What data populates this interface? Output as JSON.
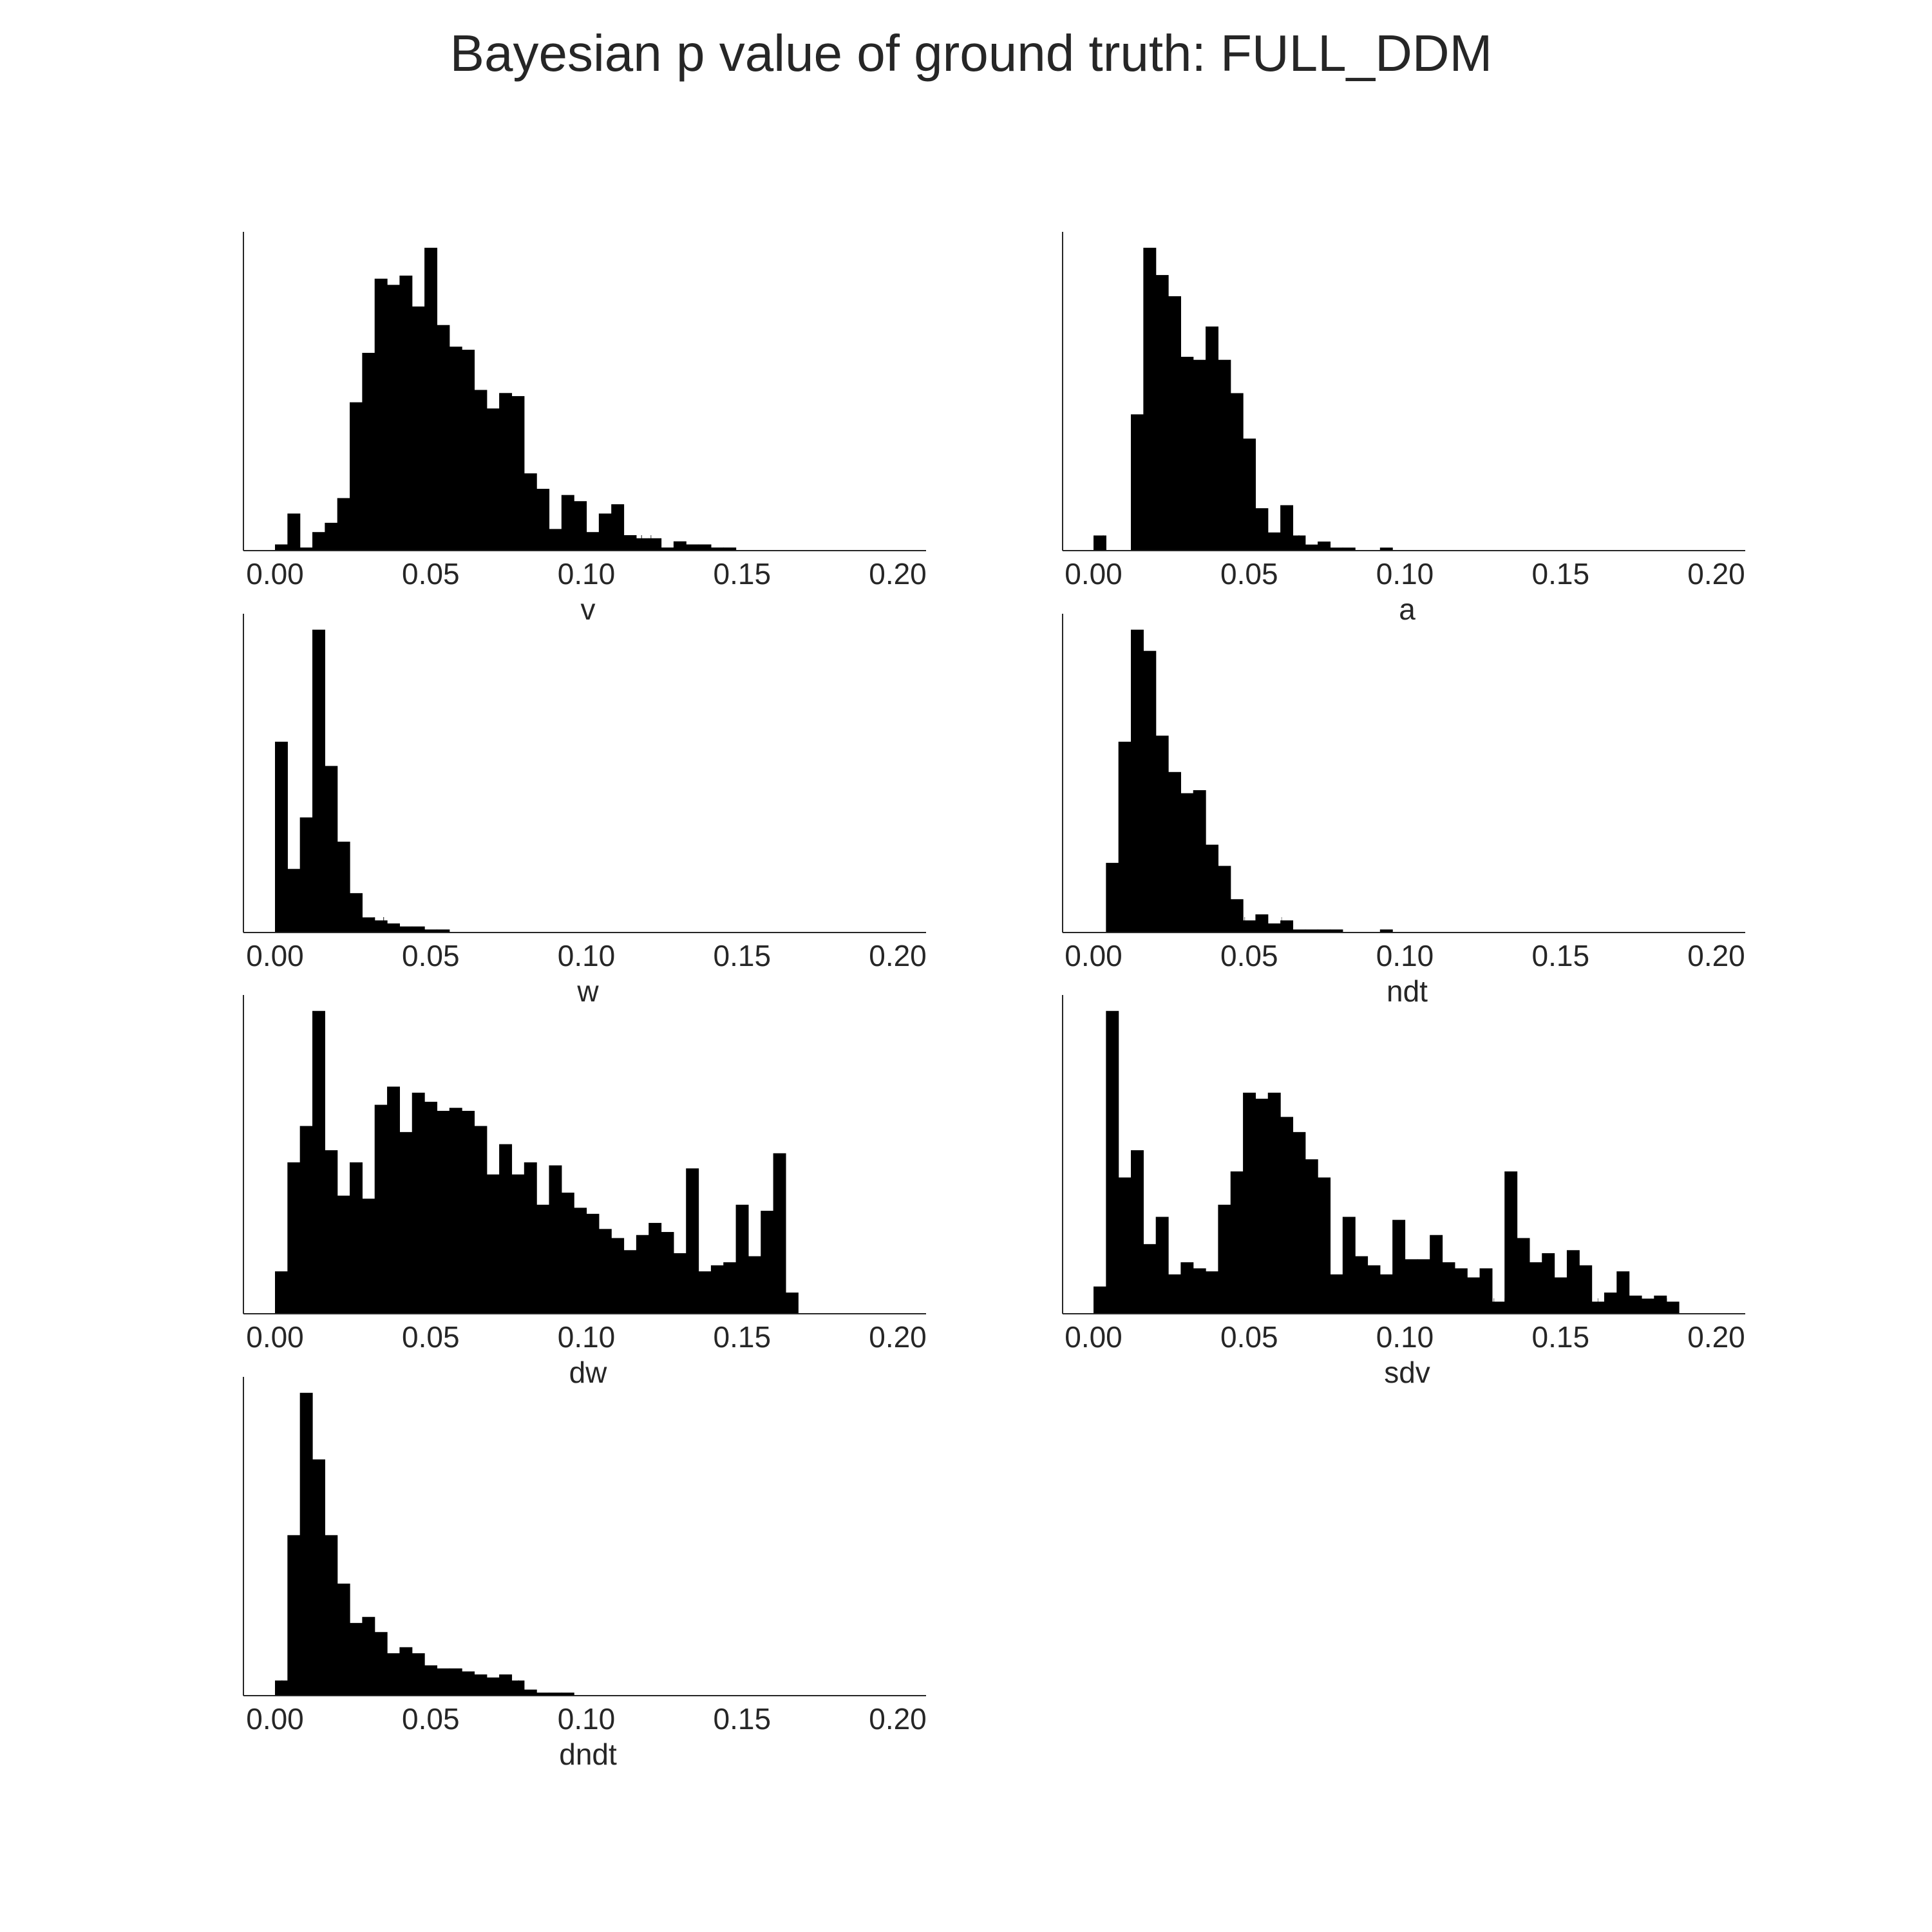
{
  "figure": {
    "title": "Bayesian p value of ground truth: FULL_DDM"
  },
  "chart_data": [
    {
      "type": "bar",
      "xlabel": "v",
      "xlim": [
        0.0,
        0.2
      ],
      "xticks": [
        "0.00",
        "0.05",
        "0.10",
        "0.15",
        "0.20"
      ],
      "bin_start": 0.0,
      "bin_width": 0.004,
      "values": [
        2,
        12,
        1,
        6,
        9,
        17,
        48,
        64,
        88,
        86,
        89,
        79,
        98,
        73,
        66,
        65,
        52,
        46,
        51,
        50,
        25,
        20,
        7,
        18,
        16,
        6,
        12,
        15,
        5,
        4,
        4,
        1,
        3,
        2,
        2,
        1,
        1,
        0,
        0,
        0,
        0,
        0,
        0,
        0,
        0,
        0,
        0,
        0,
        0,
        0
      ],
      "grid": false
    },
    {
      "type": "bar",
      "xlabel": "a",
      "xlim": [
        0.0,
        0.2
      ],
      "xticks": [
        "0.00",
        "0.05",
        "0.10",
        "0.15",
        "0.20"
      ],
      "bin_start": 0.0,
      "bin_width": 0.004,
      "values": [
        5,
        0,
        0,
        45,
        100,
        91,
        84,
        64,
        63,
        74,
        63,
        52,
        37,
        14,
        6,
        15,
        5,
        2,
        3,
        1,
        1,
        0,
        0,
        1,
        0,
        0,
        0,
        0,
        0,
        0,
        0,
        0,
        0,
        0,
        0,
        0,
        0,
        0,
        0,
        0,
        0,
        0,
        0,
        0,
        0,
        0,
        0,
        0,
        0,
        0
      ],
      "grid": false
    },
    {
      "type": "bar",
      "xlabel": "w",
      "xlim": [
        0.0,
        0.2
      ],
      "xticks": [
        "0.00",
        "0.05",
        "0.10",
        "0.15",
        "0.20"
      ],
      "bin_start": 0.0,
      "bin_width": 0.004,
      "values": [
        63,
        21,
        38,
        100,
        55,
        30,
        13,
        5,
        4,
        3,
        2,
        2,
        1,
        1,
        0,
        0,
        0,
        0,
        0,
        0,
        0,
        0,
        0,
        0,
        0,
        0,
        0,
        0,
        0,
        0,
        0,
        0,
        0,
        0,
        0,
        0,
        0,
        0,
        0,
        0,
        0,
        0,
        0,
        0,
        0,
        0,
        0,
        0,
        0,
        0
      ],
      "grid": false
    },
    {
      "type": "bar",
      "xlabel": "ndt",
      "xlim": [
        0.0,
        0.2
      ],
      "xticks": [
        "0.00",
        "0.05",
        "0.10",
        "0.15",
        "0.20"
      ],
      "bin_start": 0.0,
      "bin_width": 0.004,
      "values": [
        0,
        23,
        63,
        100,
        93,
        65,
        53,
        46,
        47,
        29,
        22,
        11,
        4,
        6,
        3,
        4,
        1,
        1,
        1,
        1,
        0,
        0,
        0,
        1,
        0,
        0,
        0,
        0,
        0,
        0,
        0,
        0,
        0,
        0,
        0,
        0,
        0,
        0,
        0,
        0,
        0,
        0,
        0,
        0,
        0,
        0,
        0,
        0,
        0,
        0
      ],
      "grid": false
    },
    {
      "type": "bar",
      "xlabel": "dw",
      "xlim": [
        0.0,
        0.2
      ],
      "xticks": [
        "0.00",
        "0.05",
        "0.10",
        "0.15",
        "0.20"
      ],
      "bin_start": 0.0,
      "bin_width": 0.004,
      "values": [
        14,
        50,
        62,
        100,
        54,
        39,
        50,
        38,
        69,
        75,
        60,
        73,
        70,
        67,
        68,
        67,
        62,
        46,
        56,
        46,
        50,
        36,
        49,
        40,
        35,
        33,
        28,
        25,
        21,
        26,
        30,
        27,
        20,
        48,
        14,
        16,
        17,
        36,
        19,
        34,
        53,
        7,
        0,
        0,
        0,
        0,
        0,
        0,
        0,
        0
      ],
      "grid": false
    },
    {
      "type": "bar",
      "xlabel": "sdv",
      "xlim": [
        0.0,
        0.235
      ],
      "xticks": [
        "0.00",
        "0.05",
        "0.10",
        "0.15",
        "0.20"
      ],
      "bin_start": 0.0,
      "bin_width": 0.004,
      "values": [
        9,
        100,
        45,
        54,
        23,
        32,
        13,
        17,
        15,
        14,
        36,
        47,
        73,
        71,
        73,
        65,
        60,
        51,
        45,
        13,
        32,
        19,
        16,
        13,
        31,
        18,
        18,
        26,
        17,
        15,
        12,
        15,
        4,
        47,
        25,
        17,
        20,
        12,
        21,
        16,
        4,
        7,
        14,
        6,
        5,
        6,
        4,
        0,
        0,
        0,
        0,
        0,
        0,
        0,
        0,
        0,
        0,
        0,
        0
      ],
      "grid": false
    },
    {
      "type": "bar",
      "xlabel": "dndt",
      "xlim": [
        0.0,
        0.2
      ],
      "xticks": [
        "0.00",
        "0.05",
        "0.10",
        "0.15",
        "0.20"
      ],
      "bin_start": 0.0,
      "bin_width": 0.004,
      "values": [
        5,
        53,
        100,
        78,
        53,
        37,
        24,
        26,
        21,
        14,
        16,
        14,
        10,
        9,
        9,
        8,
        7,
        6,
        7,
        5,
        2,
        1,
        1,
        1,
        0,
        0,
        0,
        0,
        0,
        0,
        0,
        0,
        0,
        0,
        0,
        0,
        0,
        0,
        0,
        0,
        0,
        0,
        0,
        0,
        0,
        0,
        0,
        0,
        0,
        0
      ],
      "grid": false
    }
  ]
}
